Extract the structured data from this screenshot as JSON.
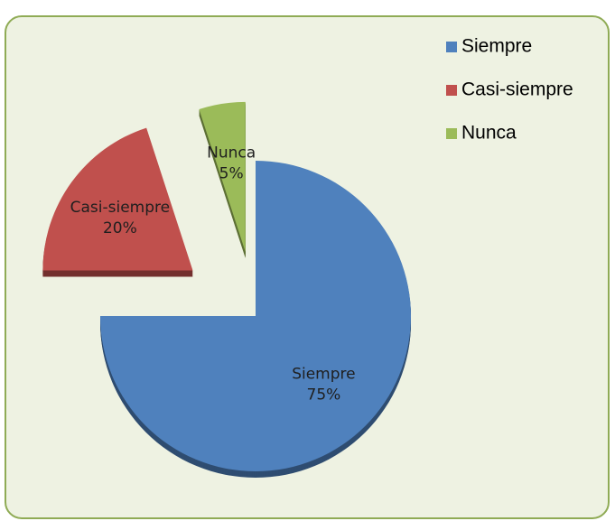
{
  "chart_data": {
    "type": "pie",
    "categories": [
      "Siempre",
      "Casi-siempre",
      "Nunca"
    ],
    "values": [
      75,
      20,
      5
    ],
    "value_labels": [
      "75%",
      "20%",
      "5%"
    ],
    "colors": [
      "#4f81bd",
      "#c0504d",
      "#9bbb59"
    ],
    "legend": "top-right"
  }
}
